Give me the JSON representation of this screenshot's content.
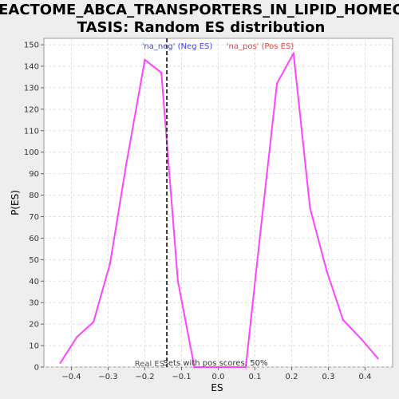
{
  "chart_data": {
    "type": "line",
    "title_line1": "REACTOME_ABCA_TRANSPORTERS_IN_LIPID_HOMEOS",
    "title_line2": "TASIS: Random ES distribution",
    "xlabel": "ES",
    "ylabel": "P(ES)",
    "xlim": [
      -0.475,
      0.475
    ],
    "ylim": [
      0,
      153
    ],
    "x_ticks": [
      -0.4,
      -0.3,
      -0.2,
      -0.1,
      0.0,
      0.1,
      0.2,
      0.3,
      0.4
    ],
    "x_tick_labels": [
      "−0.4",
      "−0.3",
      "−0.2",
      "−0.1",
      "0.0",
      "0.1",
      "0.2",
      "0.3",
      "0.4"
    ],
    "y_ticks": [
      0,
      10,
      20,
      30,
      40,
      50,
      60,
      70,
      80,
      90,
      100,
      110,
      120,
      130,
      140,
      150
    ],
    "y_tick_labels": [
      "0",
      "10",
      "20",
      "30",
      "40",
      "50",
      "60",
      "70",
      "80",
      "90",
      "100",
      "110",
      "120",
      "130",
      "140",
      "150"
    ],
    "grid": true,
    "series": [
      {
        "color": "#ff44ff",
        "x": [
          -0.43,
          -0.385,
          -0.34,
          -0.295,
          -0.25,
          -0.2,
          -0.155,
          -0.11,
          -0.065,
          0.075,
          0.115,
          0.16,
          0.205,
          0.25,
          0.295,
          0.34,
          0.39,
          0.435
        ],
        "y": [
          2,
          14,
          21,
          48,
          95,
          143,
          137,
          40,
          0,
          0,
          63,
          132,
          146,
          74,
          45,
          22,
          13,
          4
        ]
      }
    ],
    "real_es": {
      "x": -0.14,
      "label": "Real ES",
      "color": "#333333"
    },
    "annotations": {
      "neg": {
        "text": "'na_neg' (Neg ES)",
        "color": "#4444dd"
      },
      "pos": {
        "text": "'na_pos' (Pos ES)",
        "color": "#dd4444"
      },
      "pos_scores": {
        "text": "Sets with pos scores: 50%",
        "color": "#333333"
      }
    }
  }
}
